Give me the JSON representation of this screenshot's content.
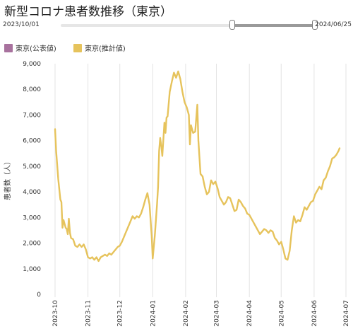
{
  "title": "新型コロナ患者数推移（東京）",
  "range": {
    "start": "2023/10/01",
    "end": "2024/06/25",
    "selected_from_fraction": 0.67,
    "selected_to_fraction": 1.0
  },
  "legend": [
    {
      "label": "東京(公表値)",
      "color": "#a8729e"
    },
    {
      "label": "東京(推計値)",
      "color": "#e6c35c"
    }
  ],
  "chart_data": {
    "type": "line",
    "ylabel": "患者数（人）",
    "xlabel": "",
    "ylim": [
      0,
      9000
    ],
    "y_ticks": [
      "0",
      "1,000",
      "2,000",
      "3,000",
      "4,000",
      "5,000",
      "6,000",
      "7,000",
      "8,000",
      "9,000"
    ],
    "x_ticks": [
      "2023-10",
      "2023-11",
      "2023-12",
      "2024-01",
      "2024-02",
      "2024-03",
      "2024-04",
      "2024-05",
      "2024-06",
      "2024-07"
    ],
    "xlim": [
      "2023-10-01",
      "2024-07-01"
    ],
    "grid": "vertical",
    "series": [
      {
        "name": "東京(推計値)",
        "color": "#e6c35c",
        "points": [
          [
            "2023-10-01",
            6450
          ],
          [
            "2023-10-02",
            5600
          ],
          [
            "2023-10-04",
            4500
          ],
          [
            "2023-10-06",
            3700
          ],
          [
            "2023-10-07",
            3600
          ],
          [
            "2023-10-08",
            2600
          ],
          [
            "2023-10-09",
            2900
          ],
          [
            "2023-10-10",
            2750
          ],
          [
            "2023-10-11",
            2600
          ],
          [
            "2023-10-12",
            2550
          ],
          [
            "2023-10-13",
            2350
          ],
          [
            "2023-10-14",
            2950
          ],
          [
            "2023-10-15",
            2400
          ],
          [
            "2023-10-16",
            2200
          ],
          [
            "2023-10-18",
            2150
          ],
          [
            "2023-10-20",
            1900
          ],
          [
            "2023-10-22",
            1850
          ],
          [
            "2023-10-24",
            1950
          ],
          [
            "2023-10-26",
            1850
          ],
          [
            "2023-10-28",
            1950
          ],
          [
            "2023-10-30",
            1750
          ],
          [
            "2023-11-01",
            1450
          ],
          [
            "2023-11-03",
            1400
          ],
          [
            "2023-11-05",
            1450
          ],
          [
            "2023-11-07",
            1350
          ],
          [
            "2023-11-09",
            1450
          ],
          [
            "2023-11-11",
            1300
          ],
          [
            "2023-11-13",
            1450
          ],
          [
            "2023-11-15",
            1500
          ],
          [
            "2023-11-17",
            1550
          ],
          [
            "2023-11-19",
            1500
          ],
          [
            "2023-11-21",
            1600
          ],
          [
            "2023-11-23",
            1550
          ],
          [
            "2023-11-25",
            1650
          ],
          [
            "2023-11-27",
            1750
          ],
          [
            "2023-11-29",
            1850
          ],
          [
            "2023-12-01",
            1900
          ],
          [
            "2023-12-03",
            2050
          ],
          [
            "2023-12-05",
            2250
          ],
          [
            "2023-12-07",
            2450
          ],
          [
            "2023-12-09",
            2650
          ],
          [
            "2023-12-11",
            2850
          ],
          [
            "2023-12-13",
            3050
          ],
          [
            "2023-12-15",
            2950
          ],
          [
            "2023-12-17",
            3050
          ],
          [
            "2023-12-19",
            3000
          ],
          [
            "2023-12-21",
            3150
          ],
          [
            "2023-12-23",
            3400
          ],
          [
            "2023-12-25",
            3700
          ],
          [
            "2023-12-27",
            3950
          ],
          [
            "2023-12-29",
            3500
          ],
          [
            "2023-12-31",
            2300
          ],
          [
            "2024-01-01",
            1400
          ],
          [
            "2024-01-03",
            2300
          ],
          [
            "2024-01-05",
            3500
          ],
          [
            "2024-01-06",
            4200
          ],
          [
            "2024-01-07",
            5600
          ],
          [
            "2024-01-08",
            6100
          ],
          [
            "2024-01-09",
            5800
          ],
          [
            "2024-01-10",
            5400
          ],
          [
            "2024-01-12",
            6700
          ],
          [
            "2024-01-13",
            6300
          ],
          [
            "2024-01-14",
            6900
          ],
          [
            "2024-01-15",
            6950
          ],
          [
            "2024-01-17",
            7900
          ],
          [
            "2024-01-19",
            8300
          ],
          [
            "2024-01-21",
            8650
          ],
          [
            "2024-01-23",
            8450
          ],
          [
            "2024-01-25",
            8700
          ],
          [
            "2024-01-27",
            8400
          ],
          [
            "2024-01-29",
            7900
          ],
          [
            "2024-01-31",
            7500
          ],
          [
            "2024-02-02",
            7300
          ],
          [
            "2024-02-04",
            7000
          ],
          [
            "2024-02-05",
            5850
          ],
          [
            "2024-02-06",
            6600
          ],
          [
            "2024-02-08",
            6300
          ],
          [
            "2024-02-10",
            6350
          ],
          [
            "2024-02-12",
            7400
          ],
          [
            "2024-02-13",
            6000
          ],
          [
            "2024-02-15",
            4700
          ],
          [
            "2024-02-17",
            4600
          ],
          [
            "2024-02-19",
            4200
          ],
          [
            "2024-02-21",
            3900
          ],
          [
            "2024-02-23",
            4000
          ],
          [
            "2024-02-25",
            4450
          ],
          [
            "2024-02-27",
            4300
          ],
          [
            "2024-02-29",
            4400
          ],
          [
            "2024-03-02",
            4150
          ],
          [
            "2024-03-04",
            3800
          ],
          [
            "2024-03-06",
            3650
          ],
          [
            "2024-03-08",
            3500
          ],
          [
            "2024-03-10",
            3600
          ],
          [
            "2024-03-12",
            3800
          ],
          [
            "2024-03-14",
            3750
          ],
          [
            "2024-03-16",
            3500
          ],
          [
            "2024-03-18",
            3250
          ],
          [
            "2024-03-20",
            3300
          ],
          [
            "2024-03-22",
            3700
          ],
          [
            "2024-03-24",
            3600
          ],
          [
            "2024-03-26",
            3450
          ],
          [
            "2024-03-28",
            3350
          ],
          [
            "2024-03-30",
            3150
          ],
          [
            "2024-04-01",
            3100
          ],
          [
            "2024-04-03",
            2950
          ],
          [
            "2024-04-05",
            2800
          ],
          [
            "2024-04-07",
            2650
          ],
          [
            "2024-04-09",
            2500
          ],
          [
            "2024-04-11",
            2350
          ],
          [
            "2024-04-13",
            2450
          ],
          [
            "2024-04-15",
            2550
          ],
          [
            "2024-04-17",
            2500
          ],
          [
            "2024-04-19",
            2400
          ],
          [
            "2024-04-21",
            2500
          ],
          [
            "2024-04-23",
            2450
          ],
          [
            "2024-04-25",
            2200
          ],
          [
            "2024-04-27",
            2100
          ],
          [
            "2024-04-29",
            1950
          ],
          [
            "2024-05-01",
            2050
          ],
          [
            "2024-05-03",
            1750
          ],
          [
            "2024-05-05",
            1400
          ],
          [
            "2024-05-07",
            1350
          ],
          [
            "2024-05-09",
            1700
          ],
          [
            "2024-05-11",
            2500
          ],
          [
            "2024-05-13",
            3050
          ],
          [
            "2024-05-15",
            2800
          ],
          [
            "2024-05-17",
            2900
          ],
          [
            "2024-05-19",
            2850
          ],
          [
            "2024-05-21",
            3100
          ],
          [
            "2024-05-23",
            3400
          ],
          [
            "2024-05-25",
            3300
          ],
          [
            "2024-05-27",
            3450
          ],
          [
            "2024-05-29",
            3600
          ],
          [
            "2024-05-31",
            3650
          ],
          [
            "2024-06-02",
            3900
          ],
          [
            "2024-06-04",
            4050
          ],
          [
            "2024-06-06",
            4200
          ],
          [
            "2024-06-08",
            4100
          ],
          [
            "2024-06-10",
            4450
          ],
          [
            "2024-06-12",
            4550
          ],
          [
            "2024-06-14",
            4800
          ],
          [
            "2024-06-16",
            5000
          ],
          [
            "2024-06-18",
            5300
          ],
          [
            "2024-06-20",
            5350
          ],
          [
            "2024-06-22",
            5450
          ],
          [
            "2024-06-24",
            5600
          ],
          [
            "2024-06-25",
            5700
          ]
        ]
      }
    ]
  }
}
